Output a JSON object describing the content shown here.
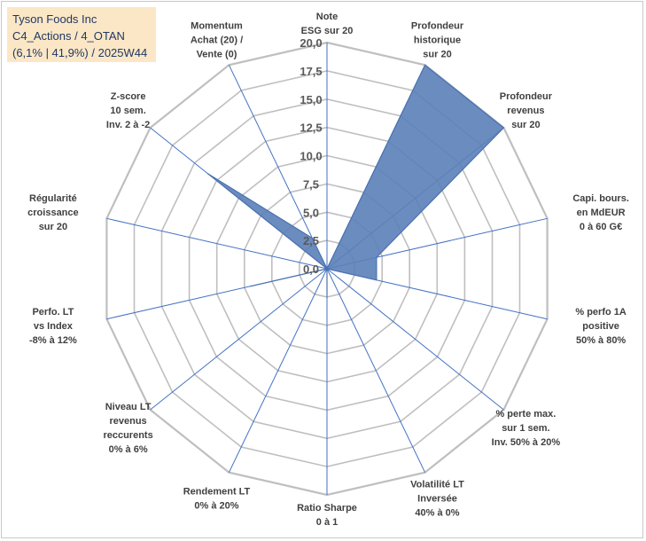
{
  "header": {
    "line1": "Tyson Foods Inc",
    "line2": "C4_Actions / 4_OTAN",
    "line3": "(6,1% | 41,9%) / 2025W44"
  },
  "chart_data": {
    "type": "radar",
    "title": "",
    "r_range": [
      0,
      20
    ],
    "r_ticks": [
      "0,0",
      "2,5",
      "5,0",
      "7,5",
      "10,0",
      "12,5",
      "15,0",
      "17,5",
      "20,0"
    ],
    "grid": true,
    "colors": {
      "fill": "#5b7fb8",
      "stroke": "#4a72b0",
      "grid": "#bfbfbf",
      "spoke": "#4472c4"
    },
    "axes": [
      {
        "label": [
          "Note",
          "ESG sur 20"
        ],
        "value": 0
      },
      {
        "label": [
          "Profondeur",
          "historique",
          "sur 20"
        ],
        "value": 20
      },
      {
        "label": [
          "Profondeur",
          "revenus",
          "sur 20"
        ],
        "value": 20
      },
      {
        "label": [
          "Capi. bours.",
          "en MdEUR",
          "0 à 60 G€"
        ],
        "value": 4.5
      },
      {
        "label": [
          "% perfo 1A",
          "positive",
          "50% à 80%"
        ],
        "value": 4.5
      },
      {
        "label": [
          "% perte max.",
          "sur 1 sem.",
          "Inv. 50% à 20%"
        ],
        "value": 0
      },
      {
        "label": [
          "Volatilité LT",
          "Inversée",
          "40% à 0%"
        ],
        "value": 0
      },
      {
        "label": [
          "Ratio Sharpe",
          "0 à 1"
        ],
        "value": 2.5
      },
      {
        "label": [
          "Rendement LT",
          "0% à 20%"
        ],
        "value": 0
      },
      {
        "label": [
          "Niveau LT",
          "revenus",
          "reccurents",
          "0% à 6%"
        ],
        "value": 0
      },
      {
        "label": [
          "Perfo. LT",
          "vs Index",
          "-8% à 12%"
        ],
        "value": 7
      },
      {
        "label": [
          "Régularité",
          "croissance",
          "sur 20"
        ],
        "value": 0
      },
      {
        "label": [
          "Z-score",
          "10 sem.",
          "Inv. 2 à -2"
        ],
        "value": 13.5
      },
      {
        "label": [
          "Momentum",
          "Achat (20) /",
          "Vente (0)"
        ],
        "value": 3
      }
    ]
  }
}
